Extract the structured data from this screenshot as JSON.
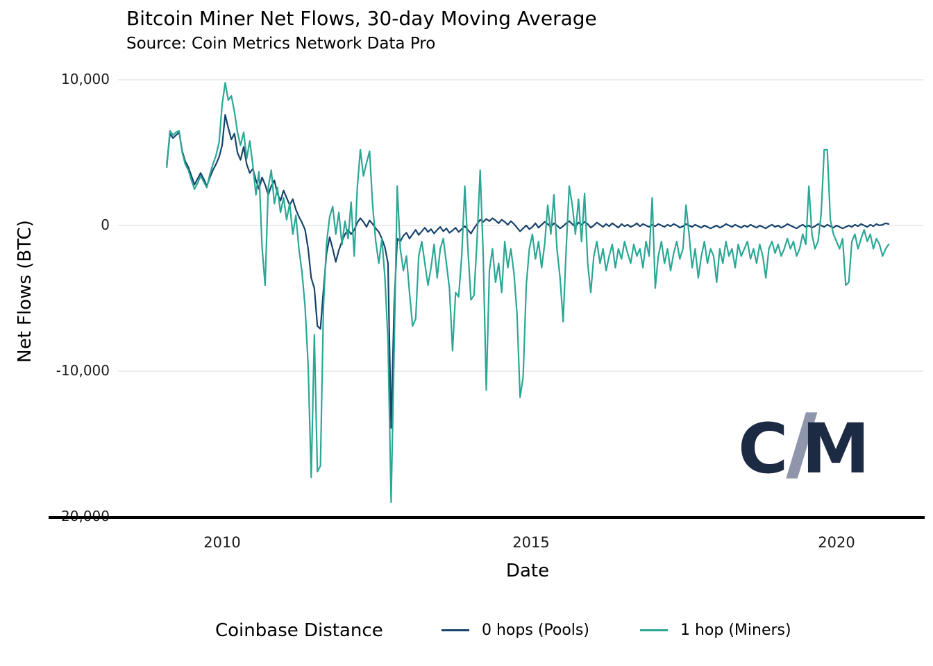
{
  "title": "Bitcoin Miner Net Flows, 30-day Moving Average",
  "subtitle": "Source: Coin Metrics Network Data Pro",
  "axes": {
    "y_label": "Net Flows (BTC)",
    "x_label": "Date",
    "y_tick_labels": [
      "10,000",
      "0",
      "-10,000",
      "-20,000"
    ],
    "x_tick_labels": [
      "2010",
      "2015",
      "2020"
    ]
  },
  "legend": {
    "title": "Coinbase Distance",
    "items": [
      {
        "label": "0 hops (Pools)",
        "color": "#17436b"
      },
      {
        "label": "1 hop (Miners)",
        "color": "#2ba795"
      }
    ]
  },
  "logo": {
    "c": "C",
    "m": "M",
    "letter_color": "#1d2a44",
    "slash_color": "#8f96ac"
  },
  "colors": {
    "grid": "#e5e5e5",
    "axis_line": "#000000",
    "background": "#ffffff"
  },
  "chart_data": {
    "type": "line",
    "title": "Bitcoin Miner Net Flows, 30-day Moving Average",
    "subtitle": "Source: Coin Metrics Network Data Pro",
    "xlabel": "Date",
    "ylabel": "Net Flows (BTC)",
    "xlim": [
      2008.4,
      2021.4
    ],
    "ylim": [
      -20000,
      10500
    ],
    "x_ticks": [
      2010,
      2015,
      2020
    ],
    "y_ticks": [
      10000,
      0,
      -10000,
      -20000
    ],
    "gridlines": [
      10000,
      0,
      -10000
    ],
    "legend_position": "bottom",
    "legend_title": "Coinbase Distance",
    "x_encoding": {
      "start": 2009.1,
      "step": 0.05,
      "unit": "decimal_year"
    },
    "series": [
      {
        "name": "0 hops (Pools)",
        "color": "#17436b",
        "values": [
          4200,
          6300,
          6000,
          6200,
          6400,
          5100,
          4400,
          4000,
          3400,
          2800,
          3200,
          3600,
          3200,
          2700,
          3300,
          3800,
          4200,
          4700,
          5500,
          7600,
          6700,
          5900,
          6300,
          5000,
          4500,
          5400,
          4200,
          3600,
          3900,
          3100,
          2500,
          3300,
          2800,
          2100,
          2700,
          3100,
          2200,
          1700,
          2400,
          1900,
          1400,
          1800,
          1100,
          600,
          200,
          -300,
          -1600,
          -3600,
          -4300,
          -6900,
          -7100,
          -4400,
          -1900,
          -800,
          -1600,
          -2500,
          -1700,
          -1100,
          -600,
          -300,
          -600,
          -300,
          200,
          500,
          250,
          -100,
          350,
          100,
          -200,
          -450,
          -900,
          -1500,
          -2600,
          -13900,
          -5500,
          -900,
          -1100,
          -700,
          -500,
          -900,
          -600,
          -300,
          -650,
          -400,
          -150,
          -450,
          -250,
          -550,
          -300,
          -100,
          -400,
          -200,
          -500,
          -350,
          -150,
          -450,
          -250,
          -50,
          -300,
          -550,
          -200,
          100,
          400,
          250,
          450,
          300,
          500,
          350,
          150,
          400,
          250,
          50,
          300,
          100,
          -150,
          -400,
          -200,
          0,
          -250,
          -100,
          150,
          -150,
          50,
          250,
          100,
          -100,
          150,
          0,
          -200,
          -50,
          150,
          300,
          100,
          -100,
          200,
          50,
          250,
          100,
          -150,
          0,
          200,
          50,
          -100,
          100,
          -50,
          150,
          0,
          -150,
          100,
          -50,
          50,
          -100,
          0,
          150,
          -50,
          100,
          0,
          -100,
          50,
          -50,
          100,
          0,
          -100,
          50,
          -50,
          100,
          0,
          -150,
          -50,
          100,
          0,
          -100,
          50,
          -50,
          -150,
          0,
          -100,
          -200,
          -100,
          0,
          -150,
          -50,
          100,
          0,
          -100,
          50,
          -50,
          -150,
          0,
          -100,
          50,
          -50,
          -150,
          0,
          -100,
          -200,
          -50,
          50,
          -100,
          0,
          -150,
          -50,
          100,
          0,
          -100,
          -200,
          -50,
          50,
          -100,
          0,
          -150,
          -50,
          100,
          0,
          -100,
          50,
          -50,
          -150,
          0,
          -100,
          -200,
          -100,
          0,
          -100,
          50,
          -50,
          100,
          0,
          -100,
          50,
          -50,
          100,
          0,
          50,
          150,
          100
        ]
      },
      {
        "name": "1 hop (Miners)",
        "color": "#2ba795",
        "values": [
          4000,
          6500,
          6200,
          6400,
          6500,
          5000,
          4200,
          3800,
          3100,
          2500,
          2900,
          3400,
          3000,
          2600,
          3500,
          4200,
          4800,
          5700,
          8300,
          9800,
          8600,
          8900,
          7800,
          6400,
          5500,
          6400,
          4600,
          5800,
          4100,
          2100,
          3700,
          -1500,
          -4100,
          2600,
          3800,
          1500,
          2600,
          900,
          1900,
          400,
          1500,
          -600,
          700,
          -1600,
          -3200,
          -5600,
          -9600,
          -17300,
          -7500,
          -16900,
          -16500,
          -5500,
          -1200,
          600,
          1300,
          -600,
          900,
          -1300,
          300,
          -900,
          1600,
          -2100,
          2600,
          5200,
          3400,
          4300,
          5100,
          1400,
          -1100,
          -2600,
          -900,
          -3600,
          -7900,
          -19000,
          -8500,
          2700,
          -1600,
          -3100,
          -2100,
          -4600,
          -6900,
          -6400,
          -2100,
          -1100,
          -2600,
          -4100,
          -2900,
          -1300,
          -3600,
          -1600,
          -900,
          -2600,
          -4300,
          -8600,
          -4600,
          -4900,
          -2100,
          2700,
          -1600,
          -5100,
          -4800,
          -900,
          3800,
          -2100,
          -11300,
          -3100,
          -1600,
          -3900,
          -2600,
          -4600,
          -1100,
          -2900,
          -1600,
          -3300,
          -6100,
          -11800,
          -10400,
          -4100,
          -1600,
          -600,
          -2300,
          -1100,
          -2900,
          -1300,
          1400,
          -600,
          2100,
          -1600,
          -3600,
          -6600,
          -1600,
          2700,
          1400,
          -600,
          1800,
          -1100,
          2200,
          -2600,
          -4600,
          -2100,
          -1100,
          -2600,
          -1600,
          -3100,
          -2100,
          -1300,
          -2900,
          -1600,
          -2300,
          -1100,
          -1900,
          -2600,
          -1300,
          -2100,
          -1600,
          -2900,
          -1100,
          -2100,
          1900,
          -4300,
          -2100,
          -1100,
          -2600,
          -1600,
          -3100,
          -1900,
          -1100,
          -2300,
          -1600,
          1400,
          -600,
          -2900,
          -1600,
          -3600,
          -2100,
          -1100,
          -2600,
          -1600,
          -2100,
          -3900,
          -1600,
          -2600,
          -1100,
          -2100,
          -1600,
          -2900,
          -1300,
          -2100,
          -1600,
          -1100,
          -2300,
          -1600,
          -2600,
          -1300,
          -2100,
          -3600,
          -1600,
          -1100,
          -1900,
          -1300,
          -2100,
          -1600,
          -900,
          -1600,
          -1100,
          -2100,
          -1600,
          -600,
          -1300,
          2700,
          -600,
          -1600,
          -1100,
          800,
          5200,
          5200,
          400,
          -600,
          -1100,
          -1600,
          -900,
          -4100,
          -3900,
          -1100,
          -600,
          -1600,
          -900,
          -300,
          -1100,
          -600,
          -1600,
          -900,
          -1300,
          -2100,
          -1600,
          -1300
        ]
      }
    ]
  }
}
